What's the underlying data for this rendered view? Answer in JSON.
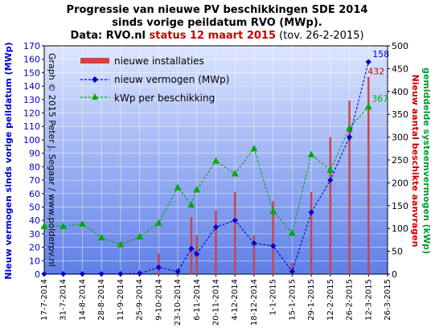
{
  "title": {
    "line1": "Progressie van nieuwe PV beschikkingen  SDE 2014",
    "line2": "sinds vorige peildatum RVO (MWp).",
    "line3_bold": "Data: RVO.nl ",
    "line3_red": "status 12 maart 2015",
    "line3_normal": " (tov. 26-2-2015)"
  },
  "credit": "Graph © 2015 Peter J. Segaar / www.polderpv.nl",
  "colors": {
    "bars": "#cc4444",
    "vermogen": "#0000cc",
    "kwp": "#00aa00",
    "left_axis": "#0000cc",
    "right_red": "#cc0000",
    "right_green": "#009933",
    "bg_top": "#dde6ff",
    "bg_bottom": "#5f7fe8"
  },
  "chart_data": {
    "type": "line",
    "xlabel": "",
    "x_ticks": [
      "17-7-2014",
      "31-7-2014",
      "14-8-2014",
      "28-8-2014",
      "11-9-2014",
      "25-9-2014",
      "9-10-2014",
      "23-10-2014",
      "6-11-2014",
      "20-11-2014",
      "4-12-2014",
      "18-12-2014",
      "1-1-2015",
      "15-1-2015",
      "29-1-2015",
      "12-2-2015",
      "26-2-2015",
      "12-3-2015",
      "26-3-2015"
    ],
    "left_axis": {
      "label": "Nieuw vermogen sinds vorige peildatum (MWp)",
      "ylim": [
        0,
        170
      ],
      "ticks": [
        0,
        10,
        20,
        30,
        40,
        50,
        60,
        70,
        80,
        90,
        100,
        110,
        120,
        130,
        140,
        150,
        160,
        170
      ]
    },
    "right_axis": {
      "label_red": "Nieuw aantal beschikte aanvragen",
      "label_green": "gemiddelde systeemvermogen (kWp)",
      "ylim": [
        0,
        500
      ],
      "ticks": [
        0,
        50,
        100,
        150,
        200,
        250,
        300,
        350,
        400,
        450,
        500
      ]
    },
    "series": [
      {
        "name": "nieuwe installaties",
        "kind": "bar",
        "axis": "right",
        "x": [
          "17-7-2014",
          "31-7-2014",
          "14-8-2014",
          "28-8-2014",
          "11-9-2014",
          "25-9-2014",
          "9-10-2014",
          "23-10-2014",
          "2-11-2014",
          "6-11-2014",
          "20-11-2014",
          "4-12-2014",
          "18-12-2014",
          "1-1-2015",
          "15-1-2015",
          "29-1-2015",
          "12-2-2015",
          "26-2-2015",
          "12-3-2015"
        ],
        "values": [
          3,
          2,
          1,
          1,
          1,
          8,
          45,
          8,
          125,
          85,
          140,
          180,
          85,
          160,
          25,
          180,
          300,
          380,
          432
        ]
      },
      {
        "name": "nieuw vermogen (MWp)",
        "kind": "line",
        "axis": "left",
        "x": [
          "17-7-2014",
          "31-7-2014",
          "14-8-2014",
          "28-8-2014",
          "11-9-2014",
          "25-9-2014",
          "9-10-2014",
          "23-10-2014",
          "2-11-2014",
          "6-11-2014",
          "20-11-2014",
          "4-12-2014",
          "18-12-2014",
          "1-1-2015",
          "15-1-2015",
          "29-1-2015",
          "12-2-2015",
          "26-2-2015",
          "12-3-2015"
        ],
        "values": [
          0.2,
          0.2,
          0.2,
          0.2,
          0.2,
          0.5,
          5,
          2,
          19,
          15,
          35,
          40,
          23,
          21,
          2,
          46,
          70,
          102,
          158
        ]
      },
      {
        "name": "kWp per beschikking",
        "kind": "line",
        "axis": "right",
        "x": [
          "17-7-2014",
          "31-7-2014",
          "14-8-2014",
          "28-8-2014",
          "11-9-2014",
          "25-9-2014",
          "9-10-2014",
          "23-10-2014",
          "2-11-2014",
          "6-11-2014",
          "20-11-2014",
          "4-12-2014",
          "18-12-2014",
          "1-1-2015",
          "15-1-2015",
          "29-1-2015",
          "12-2-2015",
          "26-2-2015",
          "12-3-2015"
        ],
        "values": [
          105,
          105,
          110,
          80,
          65,
          82,
          112,
          190,
          152,
          185,
          248,
          220,
          275,
          138,
          90,
          262,
          228,
          320,
          367
        ]
      }
    ],
    "annotations": [
      {
        "text": "158",
        "series": "nieuw vermogen (MWp)"
      },
      {
        "text": "432",
        "series": "nieuwe installaties"
      },
      {
        "text": "367",
        "series": "kWp per beschikking"
      }
    ],
    "legend_position": "top-left",
    "grid": true
  }
}
